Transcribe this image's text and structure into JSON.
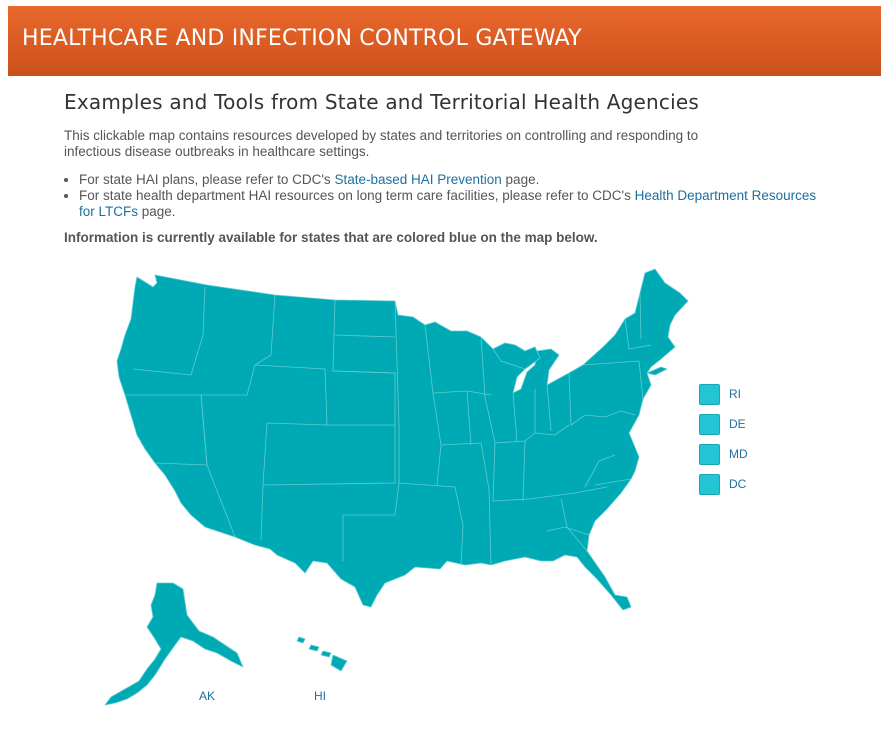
{
  "banner": {
    "title": "HEALTHCARE AND INFECTION CONTROL GATEWAY"
  },
  "page": {
    "heading": "Examples and Tools from State and Territorial Health Agencies",
    "intro": "This clickable map contains resources developed by states and territories on controlling and responding to infectious disease outbreaks in healthcare settings.",
    "bullets": [
      {
        "before": "For state HAI plans, please refer to CDC's ",
        "link": "State-based HAI Prevention",
        "after": " page."
      },
      {
        "before": "For state health department HAI resources on long term care facilities, please refer to CDC's ",
        "link": "Health Department Resources for LTCFs",
        "after": " page."
      }
    ],
    "notice": "Information is currently available for states that are colored blue on the map below."
  },
  "map": {
    "fill_color": "#00aab5",
    "border_color": "#5fcbd2",
    "legend_color": "#22c5d3",
    "link_color": "#1e6f9e",
    "small_states": [
      "RI",
      "DE",
      "MD",
      "DC"
    ],
    "alaska_label": "AK",
    "hawaii_label": "HI"
  }
}
